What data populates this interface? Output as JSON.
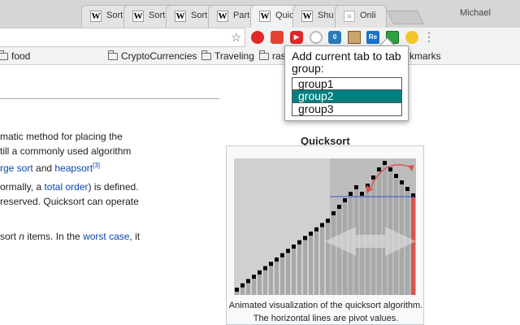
{
  "tabs": [
    {
      "title": "Sort",
      "favicon": "W"
    },
    {
      "title": "Sort",
      "favicon": "W"
    },
    {
      "title": "Sort",
      "favicon": "W"
    },
    {
      "title": "Part",
      "favicon": "W"
    },
    {
      "title": "Quic",
      "favicon": "W"
    },
    {
      "title": "Shu",
      "favicon": "W"
    },
    {
      "title": "Onli",
      "favicon": "doc-icon"
    }
  ],
  "profile_name": "Michael",
  "extensions": [
    {
      "name": "opera-icon",
      "color": "#e0272a",
      "label": ""
    },
    {
      "name": "todoist-icon",
      "color": "#e44332",
      "label": ""
    },
    {
      "name": "video-icon",
      "color": "#e0272a",
      "label": ""
    },
    {
      "name": "circle-icon",
      "color": "#bbbbbb",
      "label": ""
    },
    {
      "name": "badge-icon",
      "color": "#2a7ab8",
      "label": "0"
    },
    {
      "name": "portrait-icon",
      "color": "#c9a66b",
      "label": ""
    },
    {
      "name": "re-icon",
      "color": "#1a73c8",
      "label": "Re"
    },
    {
      "name": "tab-group-icon",
      "color": "#2e9e3e",
      "label": ""
    },
    {
      "name": "duck-icon",
      "color": "#f2c62a",
      "label": ""
    }
  ],
  "bookmarks": [
    {
      "label": "food"
    },
    {
      "label": "CryptoCurrencies"
    },
    {
      "label": "Traveling"
    },
    {
      "label": "ras"
    },
    {
      "label": "kmarks"
    }
  ],
  "article": {
    "p1a": "matic method for placing the",
    "p1b": "till a commonly used algorithm",
    "p1c_link1": "rge sort",
    "p1c_and": " and ",
    "p1c_link2": "heapsort",
    "p1c_ref": "[3]",
    "p2a_pre": "ormally, a ",
    "p2a_link": "total order",
    "p2a_post": ") is defined.",
    "p2b": "reserved. Quicksort can operate",
    "p3_pre": "sort ",
    "p3_n": "n",
    "p3_mid": " items. In the ",
    "p3_link": "worst case",
    "p3_post": ", it"
  },
  "infobox": {
    "title": "Quicksort",
    "caption_line1": "Animated visualization of the quicksort algorithm.",
    "caption_line2": "The horizontal lines are pivot values."
  },
  "popup": {
    "title": "Add current tab to tab group:",
    "groups": [
      "group1",
      "group2",
      "group3"
    ],
    "selected": "group2",
    "selected_color": "#008080"
  },
  "colors": {
    "link": "#0645ad",
    "pivot_bar": "#d9544f",
    "pivot_line": "#3f51d6"
  }
}
